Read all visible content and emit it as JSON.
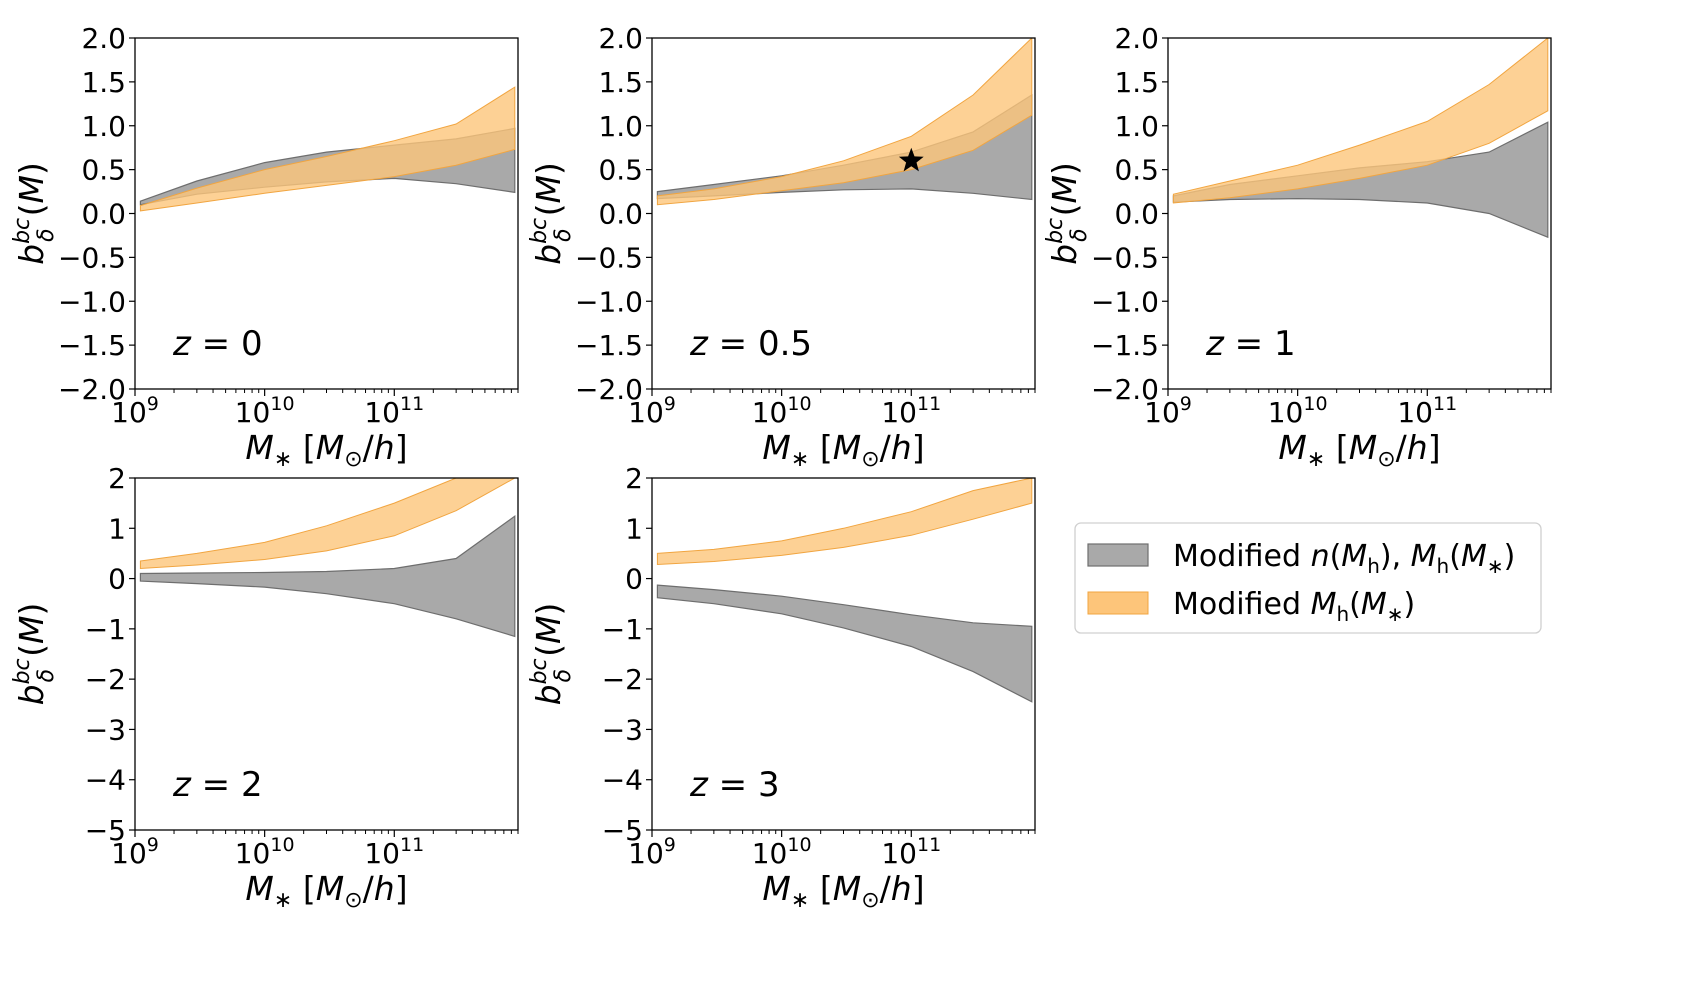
{
  "colors": {
    "gray_fill": "#a9a9a9",
    "gray_edge": "#6e6e6e",
    "orange_fill": "#fdc57a",
    "orange_edge": "#f1a540",
    "overlap": "#c99660",
    "axis": "#000000"
  },
  "legend": {
    "placement": "right of bottom row",
    "entries": [
      {
        "label": "Modified n(M_h), M_h(M_*)",
        "color": "gray"
      },
      {
        "label": "Modified M_h(M_*)",
        "color": "orange"
      }
    ]
  },
  "chart_data": [
    {
      "type": "area",
      "panel": "z=0",
      "annotation": "z = 0",
      "xlabel": "M_* [M_⊙/h]",
      "ylabel": "b_δ^bc(M)",
      "xscale": "log",
      "xlim": [
        1000000000.0,
        900000000000.0
      ],
      "ylim": [
        -2.0,
        2.0
      ],
      "xticks": [
        "10^9",
        "10^10",
        "10^11"
      ],
      "yticks": [
        "−2.0",
        "−1.5",
        "−1.0",
        "−0.5",
        "0.0",
        "0.5",
        "1.0",
        "1.5",
        "2.0"
      ],
      "x": [
        1100000000.0,
        3000000000.0,
        10000000000.0,
        30000000000.0,
        100000000000.0,
        300000000000.0,
        850000000000.0
      ],
      "series": [
        {
          "name": "Modified n(M_h), M_h(M_*)",
          "upper": [
            0.14,
            0.37,
            0.58,
            0.7,
            0.78,
            0.85,
            0.97
          ],
          "lower": [
            0.1,
            0.22,
            0.3,
            0.36,
            0.4,
            0.34,
            0.24
          ]
        },
        {
          "name": "Modified M_h(M_*)",
          "upper": [
            0.09,
            0.29,
            0.5,
            0.65,
            0.83,
            1.02,
            1.44
          ],
          "lower": [
            0.03,
            0.12,
            0.23,
            0.32,
            0.42,
            0.55,
            0.73
          ]
        }
      ]
    },
    {
      "type": "area",
      "panel": "z=0.5",
      "annotation": "z = 0.5",
      "xlabel": "M_* [M_⊙/h]",
      "ylabel": "b_δ^bc(M)",
      "xscale": "log",
      "xlim": [
        1000000000.0,
        900000000000.0
      ],
      "ylim": [
        -2.0,
        2.0
      ],
      "xticks": [
        "10^9",
        "10^10",
        "10^11"
      ],
      "yticks": [
        "−2.0",
        "−1.5",
        "−1.0",
        "−0.5",
        "0.0",
        "0.5",
        "1.0",
        "1.5",
        "2.0"
      ],
      "x": [
        1100000000.0,
        3000000000.0,
        10000000000.0,
        30000000000.0,
        100000000000.0,
        300000000000.0,
        850000000000.0
      ],
      "series": [
        {
          "name": "Modified n(M_h), M_h(M_*)",
          "upper": [
            0.25,
            0.33,
            0.43,
            0.55,
            0.7,
            0.93,
            1.35
          ],
          "lower": [
            0.17,
            0.2,
            0.24,
            0.27,
            0.28,
            0.23,
            0.16
          ]
        },
        {
          "name": "Modified M_h(M_*)",
          "upper": [
            0.2,
            0.28,
            0.42,
            0.6,
            0.88,
            1.35,
            2.0
          ],
          "lower": [
            0.1,
            0.16,
            0.26,
            0.35,
            0.5,
            0.72,
            1.12
          ]
        }
      ],
      "markers": [
        {
          "x": 100000000000.0,
          "y": 0.6,
          "symbol": "star"
        }
      ]
    },
    {
      "type": "area",
      "panel": "z=1",
      "annotation": "z = 1",
      "xlabel": "M_* [M_⊙/h]",
      "ylabel": "b_δ^bc(M)",
      "xscale": "log",
      "xlim": [
        1000000000.0,
        900000000000.0
      ],
      "ylim": [
        -2.0,
        2.0
      ],
      "xticks": [
        "10^9",
        "10^10",
        "10^11"
      ],
      "yticks": [
        "−2.0",
        "−1.5",
        "−1.0",
        "−0.5",
        "0.0",
        "0.5",
        "1.0",
        "1.5",
        "2.0"
      ],
      "x": [
        1100000000.0,
        3000000000.0,
        10000000000.0,
        30000000000.0,
        100000000000.0,
        300000000000.0,
        850000000000.0
      ],
      "series": [
        {
          "name": "Modified n(M_h), M_h(M_*)",
          "upper": [
            0.2,
            0.33,
            0.43,
            0.52,
            0.59,
            0.7,
            1.04
          ],
          "lower": [
            0.13,
            0.16,
            0.17,
            0.16,
            0.12,
            0.0,
            -0.27
          ]
        },
        {
          "name": "Modified M_h(M_*)",
          "upper": [
            0.22,
            0.37,
            0.55,
            0.78,
            1.05,
            1.47,
            2.0
          ],
          "lower": [
            0.12,
            0.18,
            0.28,
            0.4,
            0.55,
            0.8,
            1.17
          ]
        }
      ]
    },
    {
      "type": "area",
      "panel": "z=2",
      "annotation": "z = 2",
      "xlabel": "M_* [M_⊙/h]",
      "ylabel": "b_δ^bc(M)",
      "xscale": "log",
      "xlim": [
        1000000000.0,
        900000000000.0
      ],
      "ylim": [
        -5,
        2
      ],
      "xticks": [
        "10^9",
        "10^10",
        "10^11"
      ],
      "yticks": [
        "−5",
        "−4",
        "−3",
        "−2",
        "−1",
        "0",
        "1",
        "2"
      ],
      "x": [
        1100000000.0,
        3000000000.0,
        10000000000.0,
        30000000000.0,
        100000000000.0,
        300000000000.0,
        850000000000.0
      ],
      "series": [
        {
          "name": "Modified n(M_h), M_h(M_*)",
          "upper": [
            0.1,
            0.11,
            0.12,
            0.14,
            0.2,
            0.4,
            1.24
          ],
          "lower": [
            -0.05,
            -0.1,
            -0.17,
            -0.3,
            -0.5,
            -0.8,
            -1.15
          ]
        },
        {
          "name": "Modified M_h(M_*)",
          "upper": [
            0.35,
            0.5,
            0.72,
            1.05,
            1.5,
            2.0,
            2.0
          ],
          "lower": [
            0.2,
            0.27,
            0.38,
            0.55,
            0.85,
            1.35,
            2.0
          ]
        }
      ]
    },
    {
      "type": "area",
      "panel": "z=3",
      "annotation": "z = 3",
      "xlabel": "M_* [M_⊙/h]",
      "ylabel": "b_δ^bc(M)",
      "xscale": "log",
      "xlim": [
        1000000000.0,
        900000000000.0
      ],
      "ylim": [
        -5,
        2
      ],
      "xticks": [
        "10^9",
        "10^10",
        "10^11"
      ],
      "yticks": [
        "−5",
        "−4",
        "−3",
        "−2",
        "−1",
        "0",
        "1",
        "2"
      ],
      "x": [
        1100000000.0,
        3000000000.0,
        10000000000.0,
        30000000000.0,
        100000000000.0,
        300000000000.0,
        850000000000.0
      ],
      "series": [
        {
          "name": "Modified n(M_h), M_h(M_*)",
          "upper": [
            -0.13,
            -0.22,
            -0.35,
            -0.52,
            -0.72,
            -0.88,
            -0.95
          ],
          "lower": [
            -0.38,
            -0.5,
            -0.7,
            -0.98,
            -1.35,
            -1.85,
            -2.45
          ]
        },
        {
          "name": "Modified M_h(M_*)",
          "upper": [
            0.5,
            0.58,
            0.75,
            1.0,
            1.33,
            1.75,
            2.0
          ],
          "lower": [
            0.28,
            0.34,
            0.46,
            0.62,
            0.86,
            1.18,
            1.5
          ]
        }
      ]
    }
  ]
}
